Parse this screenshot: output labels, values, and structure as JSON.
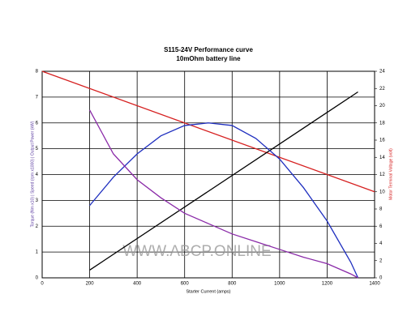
{
  "chart_data": {
    "type": "line",
    "title": "S115-24V Performance  curve",
    "subtitle": "10mOhm battery line",
    "x_label": "Starter Current (amps)",
    "y_label": "Torque (Nm x10) | Speed (rpm x1000) | Output Power (kW)",
    "y2_label": "Motor Terminal Voltage (volt)",
    "watermark": "WWW.ABCP.ONLINE",
    "xlim": [
      0,
      1400
    ],
    "xticks": [
      0,
      200,
      400,
      600,
      800,
      1000,
      1200,
      1400
    ],
    "ylim": [
      0,
      8
    ],
    "yticks": [
      0,
      1,
      2,
      3,
      4,
      5,
      6,
      7,
      8
    ],
    "y2lim": [
      0,
      24
    ],
    "y2ticks": [
      0,
      2,
      4,
      6,
      8,
      10,
      12,
      14,
      16,
      18,
      20,
      22,
      24
    ],
    "grid": true,
    "series": [
      {
        "color": "#d62020",
        "axis": "y2",
        "x": [
          0,
          1400
        ],
        "values": [
          24,
          10
        ]
      },
      {
        "color": "#000000",
        "x": [
          200,
          1330
        ],
        "values": [
          0.3,
          7.2
        ]
      },
      {
        "color": "#1f2fbf",
        "x": [
          200,
          300,
          400,
          500,
          600,
          700,
          800,
          900,
          1000,
          1100,
          1200,
          1300,
          1330
        ],
        "values": [
          2.8,
          3.9,
          4.8,
          5.5,
          5.9,
          6.0,
          5.9,
          5.4,
          4.6,
          3.5,
          2.2,
          0.6,
          0
        ]
      },
      {
        "color": "#8a2aa8",
        "x": [
          200,
          300,
          400,
          500,
          600,
          700,
          800,
          900,
          1000,
          1100,
          1200,
          1300,
          1330
        ],
        "values": [
          6.5,
          4.8,
          3.8,
          3.1,
          2.5,
          2.1,
          1.7,
          1.4,
          1.1,
          0.8,
          0.55,
          0.15,
          0
        ]
      }
    ]
  }
}
